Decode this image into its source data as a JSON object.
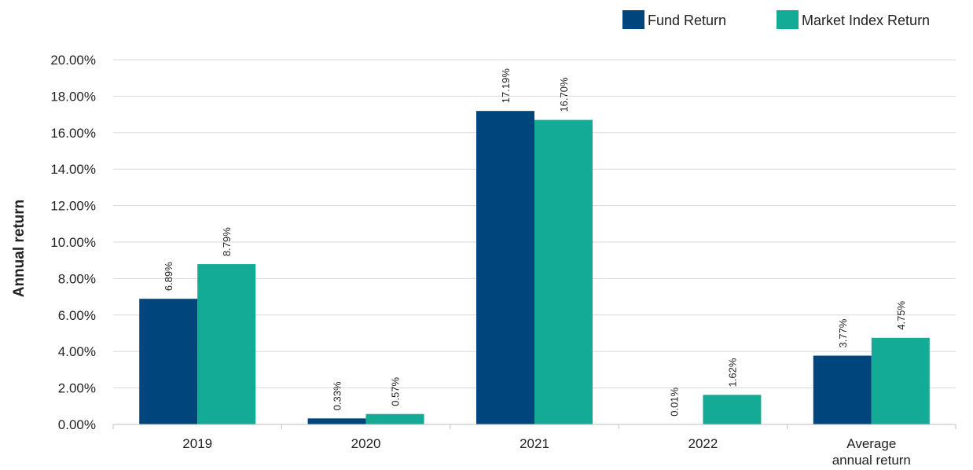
{
  "chart_data": {
    "type": "bar",
    "ylabel": "Annual return",
    "xlabel": "",
    "categories": [
      "2019",
      "2020",
      "2021",
      "2022",
      "Average|annual return"
    ],
    "series": [
      {
        "name": "Fund Return",
        "color": "#00457c",
        "values": [
          6.89,
          0.33,
          17.19,
          0.01,
          3.77
        ],
        "labels": [
          "6.89%",
          "0.33%",
          "17.19%",
          "0.01%",
          "3.77%"
        ]
      },
      {
        "name": "Market Index Return",
        "color": "#13ab96",
        "values": [
          8.79,
          0.57,
          16.7,
          1.62,
          4.75
        ],
        "labels": [
          "8.79%",
          "0.57%",
          "16.70%",
          "1.62%",
          "4.75%"
        ]
      }
    ],
    "ylim": [
      0,
      20
    ],
    "yticks": [
      "0.00%",
      "2.00%",
      "4.00%",
      "6.00%",
      "8.00%",
      "10.00%",
      "12.00%",
      "14.00%",
      "16.00%",
      "18.00%",
      "20.00%"
    ],
    "grid": true,
    "legend_position": "top-right"
  }
}
